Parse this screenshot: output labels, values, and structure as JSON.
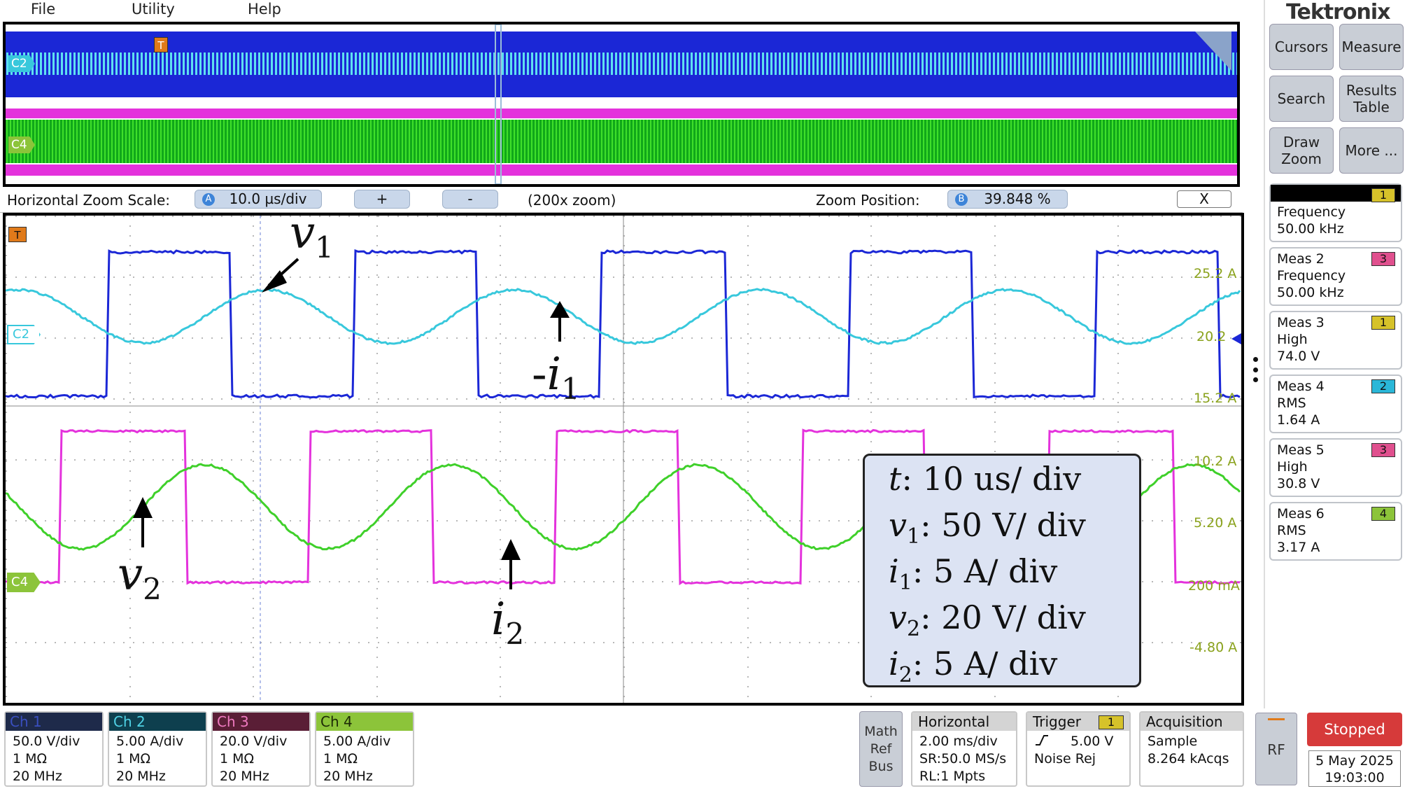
{
  "menu": {
    "file": "File",
    "utility": "Utility",
    "help": "Help"
  },
  "brand": "Tektronix",
  "overview": {
    "ch2_label": "C2",
    "ch4_label": "C4",
    "trigger_marker": "T"
  },
  "zoom_bar": {
    "scale_label": "Horizontal Zoom Scale:",
    "scale_badge": "A",
    "scale_value": "10.0 µs/div",
    "plus": "+",
    "minus": "-",
    "zoom_factor": "(200x zoom)",
    "position_label": "Zoom Position:",
    "position_badge": "B",
    "position_value": "39.848 %",
    "close": "X"
  },
  "wave_labels": {
    "trigger": "T",
    "c2": "C2",
    "c4": "C4"
  },
  "scale_labels": [
    "25.2 A",
    "20.2",
    "15.2 A",
    "10.2 A",
    "5.20 A",
    "200 mA",
    "-4.80 A"
  ],
  "annotations": {
    "v1": "v",
    "v1_sub": "1",
    "i1_prefix": "-",
    "i1": "i",
    "i1_sub": "1",
    "v2": "v",
    "v2_sub": "2",
    "i2": "i",
    "i2_sub": "2"
  },
  "legend": [
    {
      "sym": "t",
      "sub": "",
      "text": ": 10 us/ div"
    },
    {
      "sym": "v",
      "sub": "1",
      "text": ": 50 V/ div"
    },
    {
      "sym": "i",
      "sub": "1",
      "text": ": 5 A/ div"
    },
    {
      "sym": "v",
      "sub": "2",
      "text": ": 20 V/ div"
    },
    {
      "sym": "i",
      "sub": "2",
      "text": ": 5 A/ div"
    }
  ],
  "side_buttons": {
    "cursors": "Cursors",
    "measure": "Measure",
    "search": "Search",
    "results_table": "Results Table",
    "draw_zoom": "Draw Zoom",
    "more": "More ..."
  },
  "measurements": [
    {
      "name": "",
      "tag": "1",
      "type": "Frequency",
      "value": "50.00 kHz",
      "tag_color": "#d6c22a"
    },
    {
      "name": "Meas 2",
      "tag": "3",
      "type": "Frequency",
      "value": "50.00 kHz",
      "tag_color": "#e0508e"
    },
    {
      "name": "Meas 3",
      "tag": "1",
      "type": "High",
      "value": "74.0 V",
      "tag_color": "#d6c22a"
    },
    {
      "name": "Meas 4",
      "tag": "2",
      "type": "RMS",
      "value": "1.64 A",
      "tag_color": "#2ab7d8"
    },
    {
      "name": "Meas 5",
      "tag": "3",
      "type": "High",
      "value": "30.8 V",
      "tag_color": "#e0508e"
    },
    {
      "name": "Meas 6",
      "tag": "4",
      "type": "RMS",
      "value": "3.17 A",
      "tag_color": "#8cc43a"
    }
  ],
  "channels": [
    {
      "name": "Ch 1",
      "scale": "50.0 V/div",
      "impedance": "1 MΩ",
      "bw": "20 MHz",
      "head_color": "#1e2a4a",
      "text_color": "#3a4fbf"
    },
    {
      "name": "Ch 2",
      "scale": "5.00 A/div",
      "impedance": "1 MΩ",
      "bw": "20 MHz",
      "head_color": "#0e3f4e",
      "text_color": "#4fd3e6"
    },
    {
      "name": "Ch 3",
      "scale": "20.0 V/div",
      "impedance": "1 MΩ",
      "bw": "20 MHz",
      "head_color": "#5a1e36",
      "text_color": "#f07ac0"
    },
    {
      "name": "Ch 4",
      "scale": "5.00 A/div",
      "impedance": "1 MΩ",
      "bw": "20 MHz",
      "head_color": "#8cc43a",
      "text_color": "#1d2a06"
    }
  ],
  "math_ref_bus": {
    "l1": "Math",
    "l2": "Ref",
    "l3": "Bus"
  },
  "horizontal": {
    "title": "Horizontal",
    "scale": "2.00 ms/div",
    "sr": "SR:50.0 MS/s",
    "rl": "RL:1 Mpts"
  },
  "trigger": {
    "title": "Trigger",
    "tag": "1",
    "level": "5.00 V",
    "mode": "Noise Rej"
  },
  "acquisition": {
    "title": "Acquisition",
    "mode": "Sample",
    "count": "8.264 kAcqs"
  },
  "rf": "RF",
  "run_state": "Stopped",
  "date": "5 May 2025",
  "time": "19:03:00",
  "colors": {
    "ch1": "#1b27d6",
    "ch2": "#38c8dc",
    "ch3": "#e432dc",
    "ch4": "#3fd02a",
    "scale_text": "#8aa21c"
  }
}
